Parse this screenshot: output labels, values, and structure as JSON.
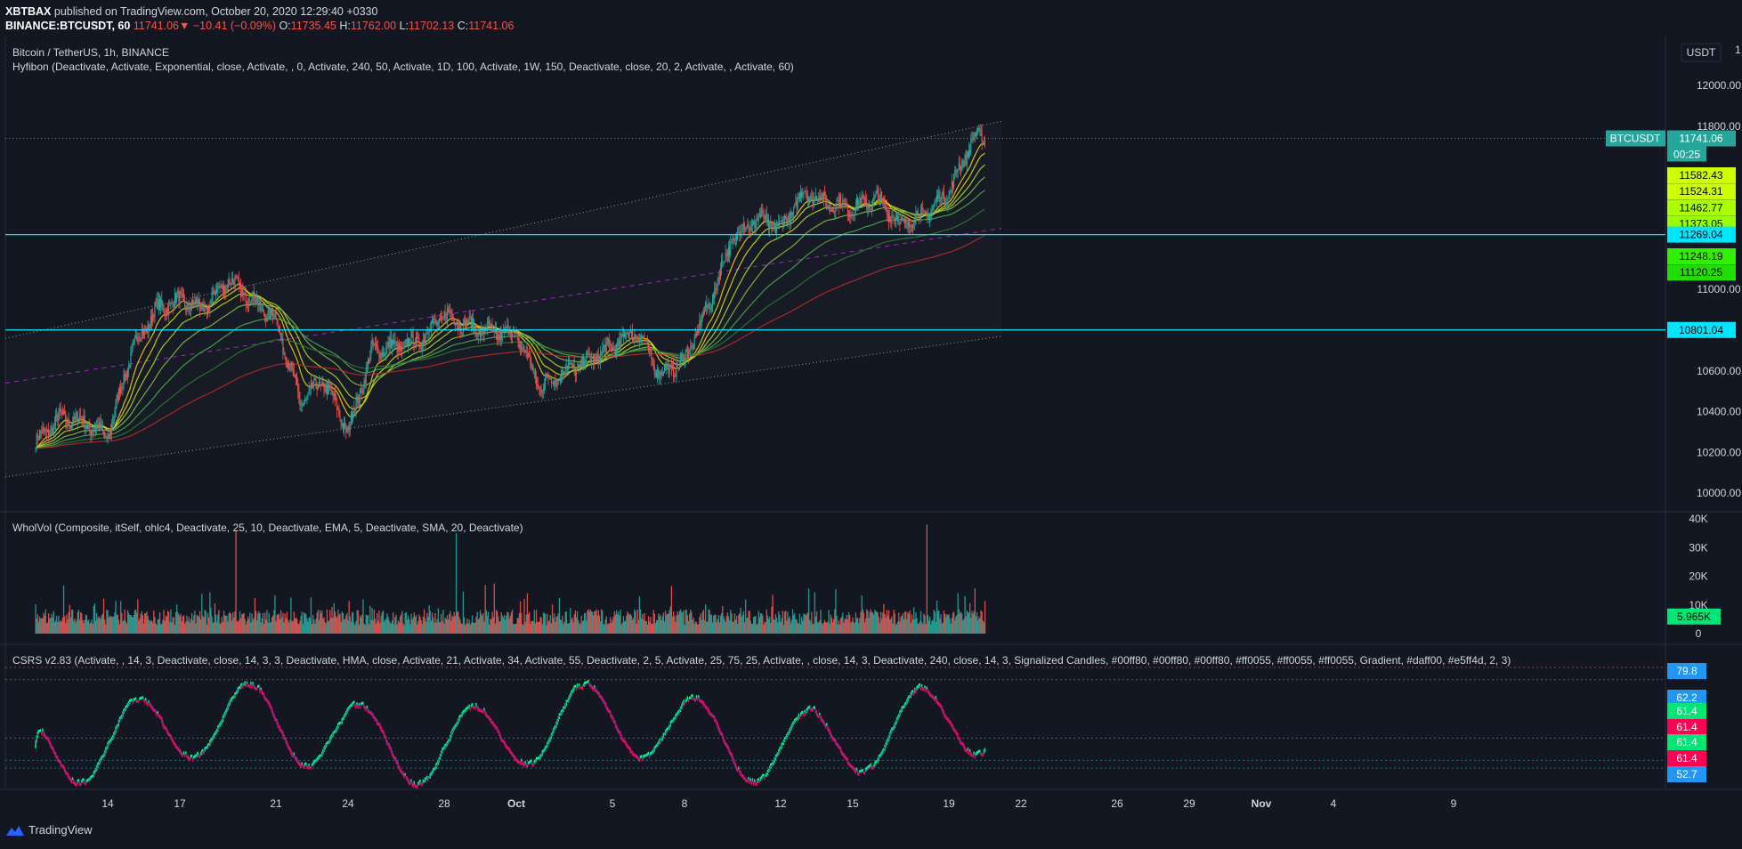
{
  "header": {
    "publisher": "XBTBAX",
    "published_text": "published on TradingView.com, October 20, 2020 12:29:40 +0330",
    "symbol": "BINANCE:BTCUSDT, 60",
    "last": "11741.06",
    "change_arrow": "▼",
    "change": "−10.41 (−0.09%)",
    "o_label": "O:",
    "o": "11735.45",
    "h_label": "H:",
    "h": "11762.00",
    "l_label": "L:",
    "l": "11702.13",
    "c_label": "C:",
    "c": "11741.06"
  },
  "colors": {
    "background": "#131722",
    "up": "#26a69a",
    "down": "#ef5350",
    "hline": "#00e5ff",
    "csrs_up": "#00ff80",
    "csrs_down": "#ff0055"
  },
  "chart_data": [
    {
      "type": "candlestick",
      "title": "Bitcoin / TetherUS, 1h, BINANCE",
      "subtitle": "Hyfibon (Deactivate, Activate, Exponential, close, Activate, , 0, Activate, 240, 50, Activate, 1D, 100, Activate, 1W, 150, Deactivate, close, 20, 2, Activate, , Activate, 60)",
      "currency": "USDT",
      "ylim": [
        9950,
        12200
      ],
      "ytick_labels": [
        "12000.00",
        "11800.00",
        "11000.00",
        "10600.00",
        "10400.00",
        "10200.00",
        "10000.00"
      ],
      "ytick_values": [
        12000,
        11800,
        11000,
        10600,
        10400,
        10200,
        10000
      ],
      "top_partial_tick": "1",
      "x_tick_labels": [
        "14",
        "17",
        "21",
        "24",
        "28",
        "Oct",
        "5",
        "8",
        "12",
        "15",
        "19",
        "22",
        "26",
        "29",
        "Nov",
        "4",
        "9"
      ],
      "close_path_anchors": [
        {
          "x": "Sep 11",
          "y": 10250
        },
        {
          "x": "Sep 12",
          "y": 10370
        },
        {
          "x": "Sep 13",
          "y": 10350
        },
        {
          "x": "Sep 14",
          "y": 10280
        },
        {
          "x": "Sep 15",
          "y": 10700
        },
        {
          "x": "Sep 16",
          "y": 10900
        },
        {
          "x": "Sep 17",
          "y": 10950
        },
        {
          "x": "Sep 18",
          "y": 10900
        },
        {
          "x": "Sep 19",
          "y": 11050
        },
        {
          "x": "Sep 20",
          "y": 10950
        },
        {
          "x": "Sep 21",
          "y": 10850
        },
        {
          "x": "Sep 22",
          "y": 10450
        },
        {
          "x": "Sep 23",
          "y": 10550
        },
        {
          "x": "Sep 24",
          "y": 10300
        },
        {
          "x": "Sep 25",
          "y": 10700
        },
        {
          "x": "Sep 26",
          "y": 10720
        },
        {
          "x": "Sep 27",
          "y": 10750
        },
        {
          "x": "Sep 28",
          "y": 10880
        },
        {
          "x": "Sep 29",
          "y": 10820
        },
        {
          "x": "Sep 30",
          "y": 10790
        },
        {
          "x": "Oct 1",
          "y": 10780
        },
        {
          "x": "Oct 2",
          "y": 10520
        },
        {
          "x": "Oct 3",
          "y": 10600
        },
        {
          "x": "Oct 4",
          "y": 10650
        },
        {
          "x": "Oct 5",
          "y": 10720
        },
        {
          "x": "Oct 6",
          "y": 10800
        },
        {
          "x": "Oct 7",
          "y": 10580
        },
        {
          "x": "Oct 8",
          "y": 10650
        },
        {
          "x": "Oct 9",
          "y": 10920
        },
        {
          "x": "Oct 10",
          "y": 11250
        },
        {
          "x": "Oct 11",
          "y": 11350
        },
        {
          "x": "Oct 12",
          "y": 11300
        },
        {
          "x": "Oct 13",
          "y": 11480
        },
        {
          "x": "Oct 14",
          "y": 11420
        },
        {
          "x": "Oct 15",
          "y": 11400
        },
        {
          "x": "Oct 16",
          "y": 11450
        },
        {
          "x": "Oct 17",
          "y": 11320
        },
        {
          "x": "Oct 18",
          "y": 11370
        },
        {
          "x": "Oct 19",
          "y": 11480
        },
        {
          "x": "Oct 20",
          "y": 11741
        }
      ],
      "hlines": [
        11269.04,
        10801.04
      ],
      "price_tag": {
        "label": "BTCUSDT",
        "value": "11741.06",
        "countdown": "00:25",
        "price": 11741.06
      },
      "ma_labels": [
        {
          "value": "11582.43",
          "price": 11582.43,
          "color": "#ccff00"
        },
        {
          "value": "11524.31",
          "price": 11524.31,
          "color": "#ccff00"
        },
        {
          "value": "11462.77",
          "price": 11462.77,
          "color": "#aaff00"
        },
        {
          "value": "11373.05",
          "price": 11373.05,
          "color": "#99ff00"
        },
        {
          "value": "11269.04",
          "price": 11269.04,
          "color": "#00e5ff"
        },
        {
          "value": "11248.19",
          "price": 11248.19,
          "color": "#33ee00"
        },
        {
          "value": "11120.25",
          "price": 11120.25,
          "color": "#22dd00"
        },
        {
          "value": "10801.04",
          "price": 10801.04,
          "color": "#00e5ff"
        }
      ]
    },
    {
      "type": "bar",
      "title": "WholVol (Composite, itSelf, ohlc4, Deactivate, 25, 10, Deactivate, EMA, 5, Deactivate, SMA, 20, Deactivate)",
      "ylim": [
        0,
        40000
      ],
      "ytick_labels": [
        "40K",
        "30K",
        "20K",
        "10K",
        "0"
      ],
      "ytick_values": [
        40000,
        30000,
        20000,
        10000,
        0
      ],
      "last_value": "5.965K",
      "last_numeric": 5965
    },
    {
      "type": "line",
      "title": "CSRS v2.83 (Activate, , 14, 3, Deactivate, close, 14, 3, 3, Deactivate, HMA, close, Activate, 21, Activate, 34, Activate, 55, Deactivate, 2, 5, Activate, 25, 75, 25, Activate, , close, 14, 3, Deactivate, 240, close, 14, 3, Signalized Candles, #00ff80, #00ff80, #00ff80, #ff0055, #ff0055, #ff0055, Gradient, #daff00, #e5ff4d, 2, 3)",
      "ylim": [
        45,
        87
      ],
      "levels": [
        {
          "value": "79.8",
          "numeric": 79.8,
          "color": "#2196f3"
        },
        {
          "value": "62.2",
          "numeric": 62.2,
          "color": "#2196f3"
        },
        {
          "value": "61.4",
          "numeric": 61.4,
          "color": "#00e676"
        },
        {
          "value": "61.4",
          "numeric": 61.4,
          "color": "#ff0055"
        },
        {
          "value": "61.4",
          "numeric": 61.4,
          "color": "#00e676"
        },
        {
          "value": "61.4",
          "numeric": 61.4,
          "color": "#ff0055"
        },
        {
          "value": "52.7",
          "numeric": 52.7,
          "color": "#2196f3"
        }
      ]
    }
  ],
  "footer": {
    "brand": "TradingView"
  }
}
